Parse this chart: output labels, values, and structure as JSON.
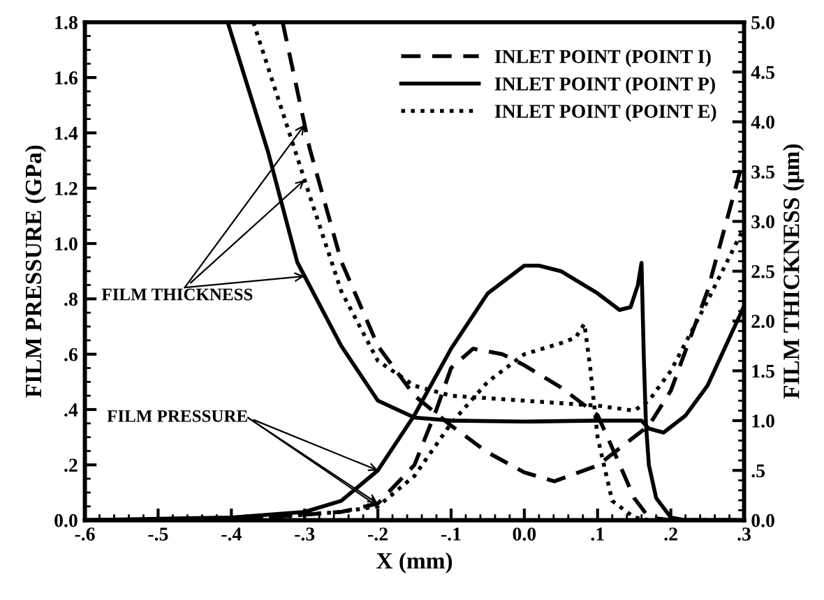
{
  "chart_data": {
    "type": "line",
    "xlabel": "X (mm)",
    "ylabel": "FILM PRESSURE (GPa)",
    "y2label": "FILM THICKNESS (μm)",
    "xlim": [
      -0.6,
      0.3
    ],
    "xticks": [
      {
        "value": -0.6,
        "label": "-.6"
      },
      {
        "value": -0.5,
        "label": "-.5"
      },
      {
        "value": -0.4,
        "label": "-.4"
      },
      {
        "value": -0.3,
        "label": "-.3"
      },
      {
        "value": -0.2,
        "label": "-.2"
      },
      {
        "value": -0.1,
        "label": "-.1"
      },
      {
        "value": 0,
        "label": "0.0"
      },
      {
        "value": 0.1,
        "label": ".1"
      },
      {
        "value": 0.2,
        "label": ".2"
      },
      {
        "value": 0.3,
        "label": ".3"
      }
    ],
    "ylim": [
      0,
      1.8
    ],
    "yticks": [
      {
        "value": 0,
        "label": "0.0"
      },
      {
        "value": 0.2,
        "label": ".2"
      },
      {
        "value": 0.4,
        "label": ".4"
      },
      {
        "value": 0.6,
        "label": ".6"
      },
      {
        "value": 0.8,
        "label": ".8"
      },
      {
        "value": 1.0,
        "label": "1.0"
      },
      {
        "value": 1.2,
        "label": "1.2"
      },
      {
        "value": 1.4,
        "label": "1.4"
      },
      {
        "value": 1.6,
        "label": "1.6"
      },
      {
        "value": 1.8,
        "label": "1.8"
      }
    ],
    "y2lim": [
      0,
      5
    ],
    "y2ticks": [
      {
        "value": 0,
        "label": "0.0"
      },
      {
        "value": 0.5,
        "label": ".5"
      },
      {
        "value": 1.0,
        "label": "1.0"
      },
      {
        "value": 1.5,
        "label": "1.5"
      },
      {
        "value": 2.0,
        "label": "2.0"
      },
      {
        "value": 2.5,
        "label": "2.5"
      },
      {
        "value": 3.0,
        "label": "3.0"
      },
      {
        "value": 3.5,
        "label": "3.5"
      },
      {
        "value": 4.0,
        "label": "4.0"
      },
      {
        "value": 4.5,
        "label": "4.5"
      },
      {
        "value": 5.0,
        "label": "5.0"
      }
    ],
    "legend": "top right",
    "grid": false,
    "marker": "none",
    "annotations": [
      {
        "text": "FILM THICKNESS",
        "x": -0.3,
        "y": 1.23
      },
      {
        "text": "FILM PRESSURE",
        "x": -0.2,
        "y": 0.18
      }
    ],
    "series": [
      {
        "name": "INLET POINT (POINT I)",
        "color": "#000000",
        "line_style": "dashed",
        "x": [
          -0.6,
          -0.4,
          -0.3,
          -0.25,
          -0.2,
          -0.15,
          -0.12,
          -0.1,
          -0.07,
          -0.03,
          0.0,
          0.05,
          0.1,
          0.127,
          0.15,
          0.17,
          0.2,
          0.3
        ],
        "values": [
          0,
          0.0,
          0.02,
          0.03,
          0.06,
          0.2,
          0.4,
          0.55,
          0.62,
          0.6,
          0.56,
          0.48,
          0.38,
          0.22,
          0.08,
          0.01,
          0,
          0
        ]
      },
      {
        "name": "INLET POINT (POINT P)",
        "color": "#000000",
        "line_style": "solid",
        "x": [
          -0.6,
          -0.4,
          -0.3,
          -0.25,
          -0.2,
          -0.15,
          -0.1,
          -0.05,
          0.0,
          0.02,
          0.05,
          0.1,
          0.13,
          0.145,
          0.155,
          0.16,
          0.163,
          0.166,
          0.17,
          0.18,
          0.2,
          0.22,
          0.3
        ],
        "values": [
          0,
          0.01,
          0.03,
          0.07,
          0.18,
          0.38,
          0.62,
          0.82,
          0.92,
          0.92,
          0.9,
          0.82,
          0.76,
          0.77,
          0.85,
          0.93,
          0.6,
          0.35,
          0.2,
          0.08,
          0.01,
          0,
          0
        ]
      },
      {
        "name": "INLET POINT (POINT E)",
        "color": "#000000",
        "line_style": "dotted",
        "x": [
          -0.6,
          -0.4,
          -0.3,
          -0.25,
          -0.2,
          -0.15,
          -0.1,
          -0.05,
          0.0,
          0.05,
          0.07,
          0.082,
          0.09,
          0.1,
          0.12,
          0.15,
          0.17,
          0.3
        ],
        "values": [
          0,
          0.0,
          0.02,
          0.03,
          0.05,
          0.16,
          0.35,
          0.5,
          0.6,
          0.64,
          0.66,
          0.71,
          0.55,
          0.3,
          0.07,
          0.01,
          0,
          0
        ]
      },
      {
        "axis": "y2",
        "color": "#000000",
        "line_style": "dashed",
        "x": [
          -0.33,
          -0.293,
          -0.25,
          -0.2,
          -0.15,
          -0.1,
          -0.05,
          0.0,
          0.041,
          0.1,
          0.17,
          0.2,
          0.25,
          0.3
        ],
        "values": [
          5.0,
          3.73,
          2.6,
          1.75,
          1.25,
          0.95,
          0.68,
          0.48,
          0.39,
          0.55,
          0.95,
          1.3,
          2.3,
          3.65
        ]
      },
      {
        "axis": "y2",
        "color": "#000000",
        "line_style": "solid",
        "x": [
          -0.405,
          -0.35,
          -0.31,
          -0.25,
          -0.2,
          -0.15,
          -0.1,
          0.0,
          0.1,
          0.16,
          0.17,
          0.19,
          0.22,
          0.25,
          0.3
        ],
        "values": [
          5.0,
          3.7,
          2.59,
          1.75,
          1.2,
          1.03,
          1.0,
          0.99,
          1.0,
          1.0,
          0.92,
          0.88,
          1.05,
          1.35,
          2.15
        ]
      },
      {
        "axis": "y2",
        "color": "#000000",
        "line_style": "dotted",
        "x": [
          -0.37,
          -0.29,
          -0.25,
          -0.2,
          -0.15,
          -0.1,
          0.0,
          0.1,
          0.15,
          0.17,
          0.2,
          0.25,
          0.3
        ],
        "values": [
          5.0,
          3.19,
          2.3,
          1.6,
          1.35,
          1.25,
          1.2,
          1.15,
          1.1,
          1.2,
          1.5,
          2.2,
          2.94
        ]
      }
    ]
  }
}
